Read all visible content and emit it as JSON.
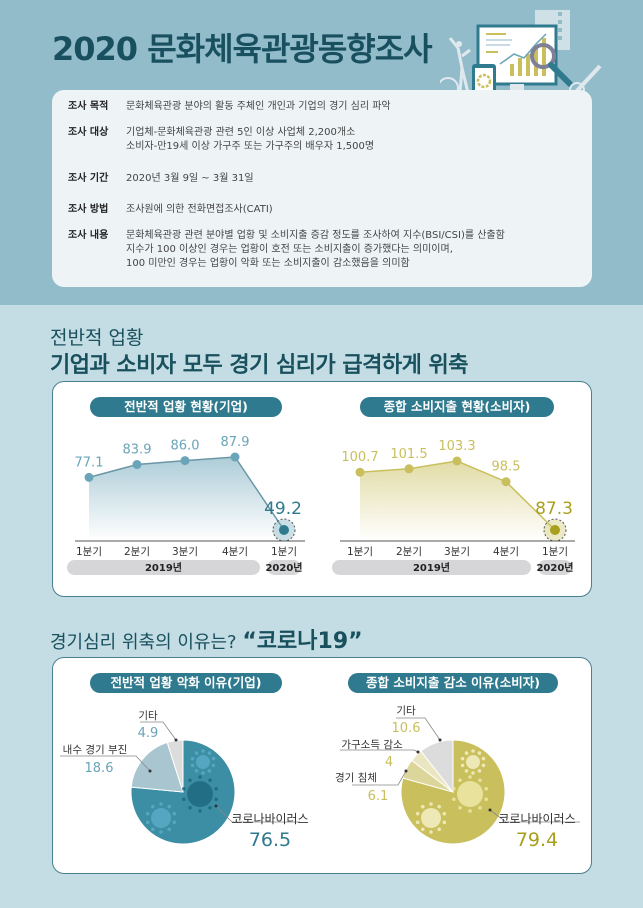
{
  "header": {
    "title": "2020 문화체육관광동향조사"
  },
  "survey_info": [
    {
      "label": "조사 목적",
      "lines": [
        "문화체육관광 분야의 활동 주체인 개인과 기업의 경기 심리 파악"
      ]
    },
    {
      "label": "조사 대상",
      "lines": [
        "기업체-문화체육관광 관련 5인 이상 사업체 2,200개소",
        "소비자-만19세 이상 가구주 또는 가구주의 배우자 1,500명"
      ]
    },
    {
      "label": "조사 기간",
      "lines": [
        "2020년 3월 9일 ~ 3월 31일"
      ]
    },
    {
      "label": "조사 방법",
      "lines": [
        "조사원에 의한 전화면접조사(CATI)"
      ]
    },
    {
      "label": "조사 내용",
      "lines": [
        "문화체육관광 관련 분야별 업황 및 소비지출 증감 정도를 조사하여 지수(BSI/CSI)를 산출함",
        "지수가 100 이상인 경우는 업황이 호전 또는 소비지출이 증가했다는 의미이며,",
        "100 미만인 경우는 업황이 악화 또는 소비지출이 감소했음을 의미함"
      ]
    }
  ],
  "section1": {
    "subtitle": "전반적 업황",
    "headline": "기업과 소비자 모두 경기 심리가 급격하게 위축"
  },
  "section2": {
    "question": "경기심리 위축의 이유는?",
    "answer": "“코로나19”"
  },
  "colors": {
    "teal": "#2f7a8e",
    "teal_light": "#6aa4b8",
    "olive": "#c9bf5c",
    "olive_dark": "#a99f1f",
    "gray_slice": "#dcdcdc",
    "teal_slice2": "#a9c6d0"
  },
  "chart_data": [
    {
      "type": "line",
      "title": "전반적 업황 현황(기업)",
      "categories": [
        "1분기",
        "2분기",
        "3분기",
        "4분기",
        "1분기"
      ],
      "year_groups": [
        {
          "label": "2019년",
          "span": 4
        },
        {
          "label": "2020년",
          "span": 1
        }
      ],
      "values": [
        77.1,
        83.9,
        86.0,
        87.9,
        49.2
      ],
      "labels": [
        "77.1",
        "83.9",
        "86.0",
        "87.9",
        "49.2"
      ],
      "highlight_index": 4,
      "ylim": [
        40,
        100
      ],
      "color": "#6aa4b8",
      "highlight_color": "#2f7a8e"
    },
    {
      "type": "line",
      "title": "종합 소비지출 현황(소비자)",
      "categories": [
        "1분기",
        "2분기",
        "3분기",
        "4분기",
        "1분기"
      ],
      "year_groups": [
        {
          "label": "2019년",
          "span": 4
        },
        {
          "label": "2020년",
          "span": 1
        }
      ],
      "values": [
        100.7,
        101.5,
        103.3,
        98.5,
        87.3
      ],
      "labels": [
        "100.7",
        "101.5",
        "103.3",
        "98.5",
        "87.3"
      ],
      "highlight_index": 4,
      "ylim": [
        80,
        110
      ],
      "color": "#c9bf5c",
      "highlight_color": "#a99f1f"
    },
    {
      "type": "pie",
      "title": "전반적 업황 악화 이유(기업)",
      "slices": [
        {
          "label": "코로나바이러스",
          "value": 76.5,
          "color": "#3b8ea3"
        },
        {
          "label": "내수 경기 부진",
          "value": 18.6,
          "color": "#a9c6d0"
        },
        {
          "label": "기타",
          "value": 4.9,
          "color": "#dcdcdc"
        }
      ],
      "value_color": "#2f7a8e",
      "minor_value_color": "#6aa4b8"
    },
    {
      "type": "pie",
      "title": "종합 소비지출 감소 이유(소비자)",
      "slices": [
        {
          "label": "코로나바이러스",
          "value": 79.4,
          "color": "#c9bf5c"
        },
        {
          "label": "경기 침체",
          "value": 6.1,
          "color": "#ddd69a"
        },
        {
          "label": "가구소득 감소",
          "value": 4.0,
          "color": "#ebe6c2"
        },
        {
          "label": "기타",
          "value": 10.6,
          "color": "#dcdcdc"
        }
      ],
      "value_color": "#a99f1f",
      "minor_value_color": "#c9bf5c"
    }
  ]
}
